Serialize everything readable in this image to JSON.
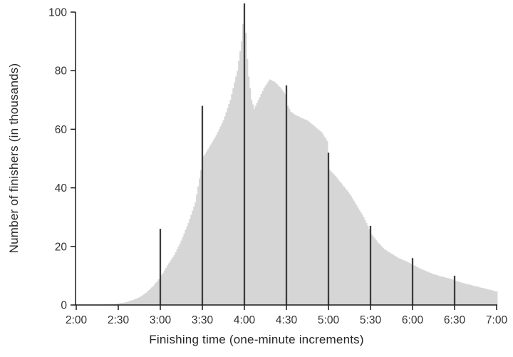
{
  "chart_data": {
    "type": "bar",
    "title": "",
    "xlabel": "Finishing time (one-minute increments)",
    "ylabel": "Number of finishers (in thousands)",
    "x_tick_labels": [
      "2:00",
      "2:30",
      "3:00",
      "3:30",
      "4:00",
      "4:30",
      "5:00",
      "5:30",
      "6:00",
      "6:30",
      "7:00"
    ],
    "x_tick_minutes": [
      0,
      30,
      60,
      90,
      120,
      150,
      180,
      210,
      240,
      270,
      300
    ],
    "x_start_label": "2:00",
    "x_end_label": "7:00",
    "y_ticks": [
      0,
      20,
      40,
      60,
      80,
      100
    ],
    "ylim": [
      0,
      105
    ],
    "grid": false,
    "legend": false,
    "bar_color": "#d6d6d6",
    "highlight_color": "#3c3c3c",
    "axis_color": "#1a1a1a",
    "tick_label_color": "#333333",
    "highlight_indices": [
      60,
      90,
      120,
      150,
      180,
      210,
      240,
      270
    ],
    "values": [
      0.1,
      0.1,
      0.1,
      0.1,
      0.1,
      0.1,
      0.1,
      0.1,
      0.1,
      0.1,
      0.1,
      0.1,
      0.1,
      0.1,
      0.1,
      0.1,
      0.1,
      0.1,
      0.1,
      0.1,
      0.2,
      0.2,
      0.2,
      0.2,
      0.2,
      0.2,
      0.3,
      0.3,
      0.4,
      0.4,
      0.5,
      0.6,
      0.7,
      0.7,
      0.8,
      0.9,
      1.0,
      1.2,
      1.3,
      1.5,
      1.6,
      1.8,
      2.0,
      2.2,
      2.4,
      2.6,
      2.9,
      3.2,
      3.6,
      3.9,
      4.2,
      4.7,
      5.1,
      5.6,
      6.0,
      6.5,
      7.1,
      7.7,
      8.2,
      8.8,
      26.0,
      10.2,
      11.0,
      11.8,
      12.7,
      13.5,
      14.2,
      14.9,
      15.6,
      16.3,
      17.0,
      18.0,
      19.0,
      20.0,
      21.0,
      22.0,
      23.2,
      24.4,
      25.6,
      26.8,
      28.0,
      29.4,
      30.8,
      32.2,
      33.6,
      35.0,
      37.8,
      40.5,
      43.2,
      46.0,
      68.0,
      50.8,
      51.6,
      52.4,
      53.2,
      54.0,
      54.8,
      55.6,
      56.4,
      57.2,
      58.0,
      59.0,
      60.0,
      61.0,
      62.0,
      63.0,
      64.4,
      65.8,
      67.2,
      68.6,
      70.0,
      72.0,
      74.0,
      76.0,
      78.0,
      80.0,
      83.3,
      86.7,
      90.0,
      96.0,
      103.0,
      93.0,
      84.0,
      78.0,
      74.0,
      70.0,
      68.5,
      67.0,
      68.0,
      69.0,
      70.0,
      71.0,
      72.0,
      73.0,
      74.0,
      74.8,
      75.5,
      76.3,
      77.0,
      76.8,
      76.5,
      76.3,
      76.0,
      75.5,
      75.0,
      74.5,
      74.0,
      73.3,
      72.7,
      72.0,
      75.0,
      68.0,
      67.0,
      66.0,
      65.7,
      65.3,
      65.0,
      64.8,
      64.5,
      64.3,
      64.0,
      63.8,
      63.6,
      63.4,
      63.2,
      63.0,
      62.6,
      62.2,
      61.8,
      61.4,
      61.0,
      60.6,
      60.2,
      59.8,
      59.4,
      59.0,
      58.3,
      57.5,
      56.8,
      56.0,
      52.0,
      46.0,
      45.5,
      45.0,
      44.5,
      44.0,
      43.4,
      42.8,
      42.2,
      41.6,
      41.0,
      40.4,
      39.8,
      39.2,
      38.6,
      38.0,
      37.2,
      36.4,
      35.6,
      34.8,
      34.0,
      33.2,
      32.4,
      31.6,
      30.8,
      30.0,
      29.0,
      28.0,
      27.0,
      26.0,
      27.0,
      24.0,
      23.4,
      22.8,
      22.1,
      21.5,
      21.0,
      20.5,
      20.0,
      19.5,
      19.0,
      18.7,
      18.4,
      18.1,
      17.8,
      17.5,
      17.2,
      16.9,
      16.6,
      16.3,
      16.0,
      15.8,
      15.6,
      15.4,
      15.2,
      15.0,
      14.8,
      14.5,
      14.3,
      14.0,
      16.0,
      13.5,
      13.3,
      13.0,
      12.8,
      12.5,
      12.3,
      12.1,
      11.9,
      11.7,
      11.5,
      11.3,
      11.1,
      10.9,
      10.7,
      10.5,
      10.4,
      10.2,
      10.1,
      9.9,
      9.8,
      9.7,
      9.6,
      9.4,
      9.3,
      9.2,
      9.1,
      8.9,
      8.8,
      8.6,
      10.0,
      8.2,
      8.1,
      7.9,
      7.8,
      7.6,
      7.5,
      7.4,
      7.2,
      7.1,
      7.0,
      6.9,
      6.8,
      6.6,
      6.5,
      6.4,
      6.3,
      6.2,
      6.0,
      5.9,
      5.8,
      5.7,
      5.6,
      5.4,
      5.3,
      5.2,
      5.1,
      5.0,
      4.8,
      4.7,
      4.6
    ]
  }
}
